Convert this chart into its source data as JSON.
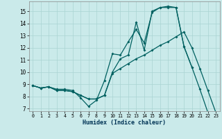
{
  "xlabel": "Humidex (Indice chaleur)",
  "bg_color": "#caeaea",
  "grid_color": "#aad4d2",
  "line_color": "#006060",
  "xlim": [
    -0.5,
    23.5
  ],
  "ylim": [
    6.8,
    15.8
  ],
  "yticks": [
    7,
    8,
    9,
    10,
    11,
    12,
    13,
    14,
    15
  ],
  "xticks": [
    0,
    1,
    2,
    3,
    4,
    5,
    6,
    7,
    8,
    9,
    10,
    11,
    12,
    13,
    14,
    15,
    16,
    17,
    18,
    19,
    20,
    21,
    22,
    23
  ],
  "line1_y": [
    8.9,
    8.7,
    8.8,
    8.6,
    8.6,
    8.5,
    7.9,
    7.2,
    7.7,
    9.3,
    11.5,
    11.4,
    12.5,
    13.5,
    12.4,
    14.9,
    15.3,
    15.3,
    15.3,
    12.1,
    10.4,
    8.6,
    6.7,
    null
  ],
  "line2_y": [
    8.9,
    8.7,
    8.8,
    8.5,
    8.5,
    8.4,
    8.1,
    7.8,
    7.8,
    8.1,
    9.9,
    10.3,
    10.7,
    11.1,
    11.4,
    11.8,
    12.2,
    12.5,
    12.9,
    13.3,
    12.0,
    10.3,
    8.5,
    6.7
  ],
  "line3_y": [
    8.9,
    8.7,
    8.8,
    8.5,
    8.5,
    8.4,
    8.1,
    7.8,
    7.8,
    8.1,
    10.0,
    11.1,
    11.4,
    14.1,
    11.8,
    15.0,
    15.3,
    15.4,
    15.3,
    12.1,
    10.4,
    null,
    null,
    null
  ]
}
